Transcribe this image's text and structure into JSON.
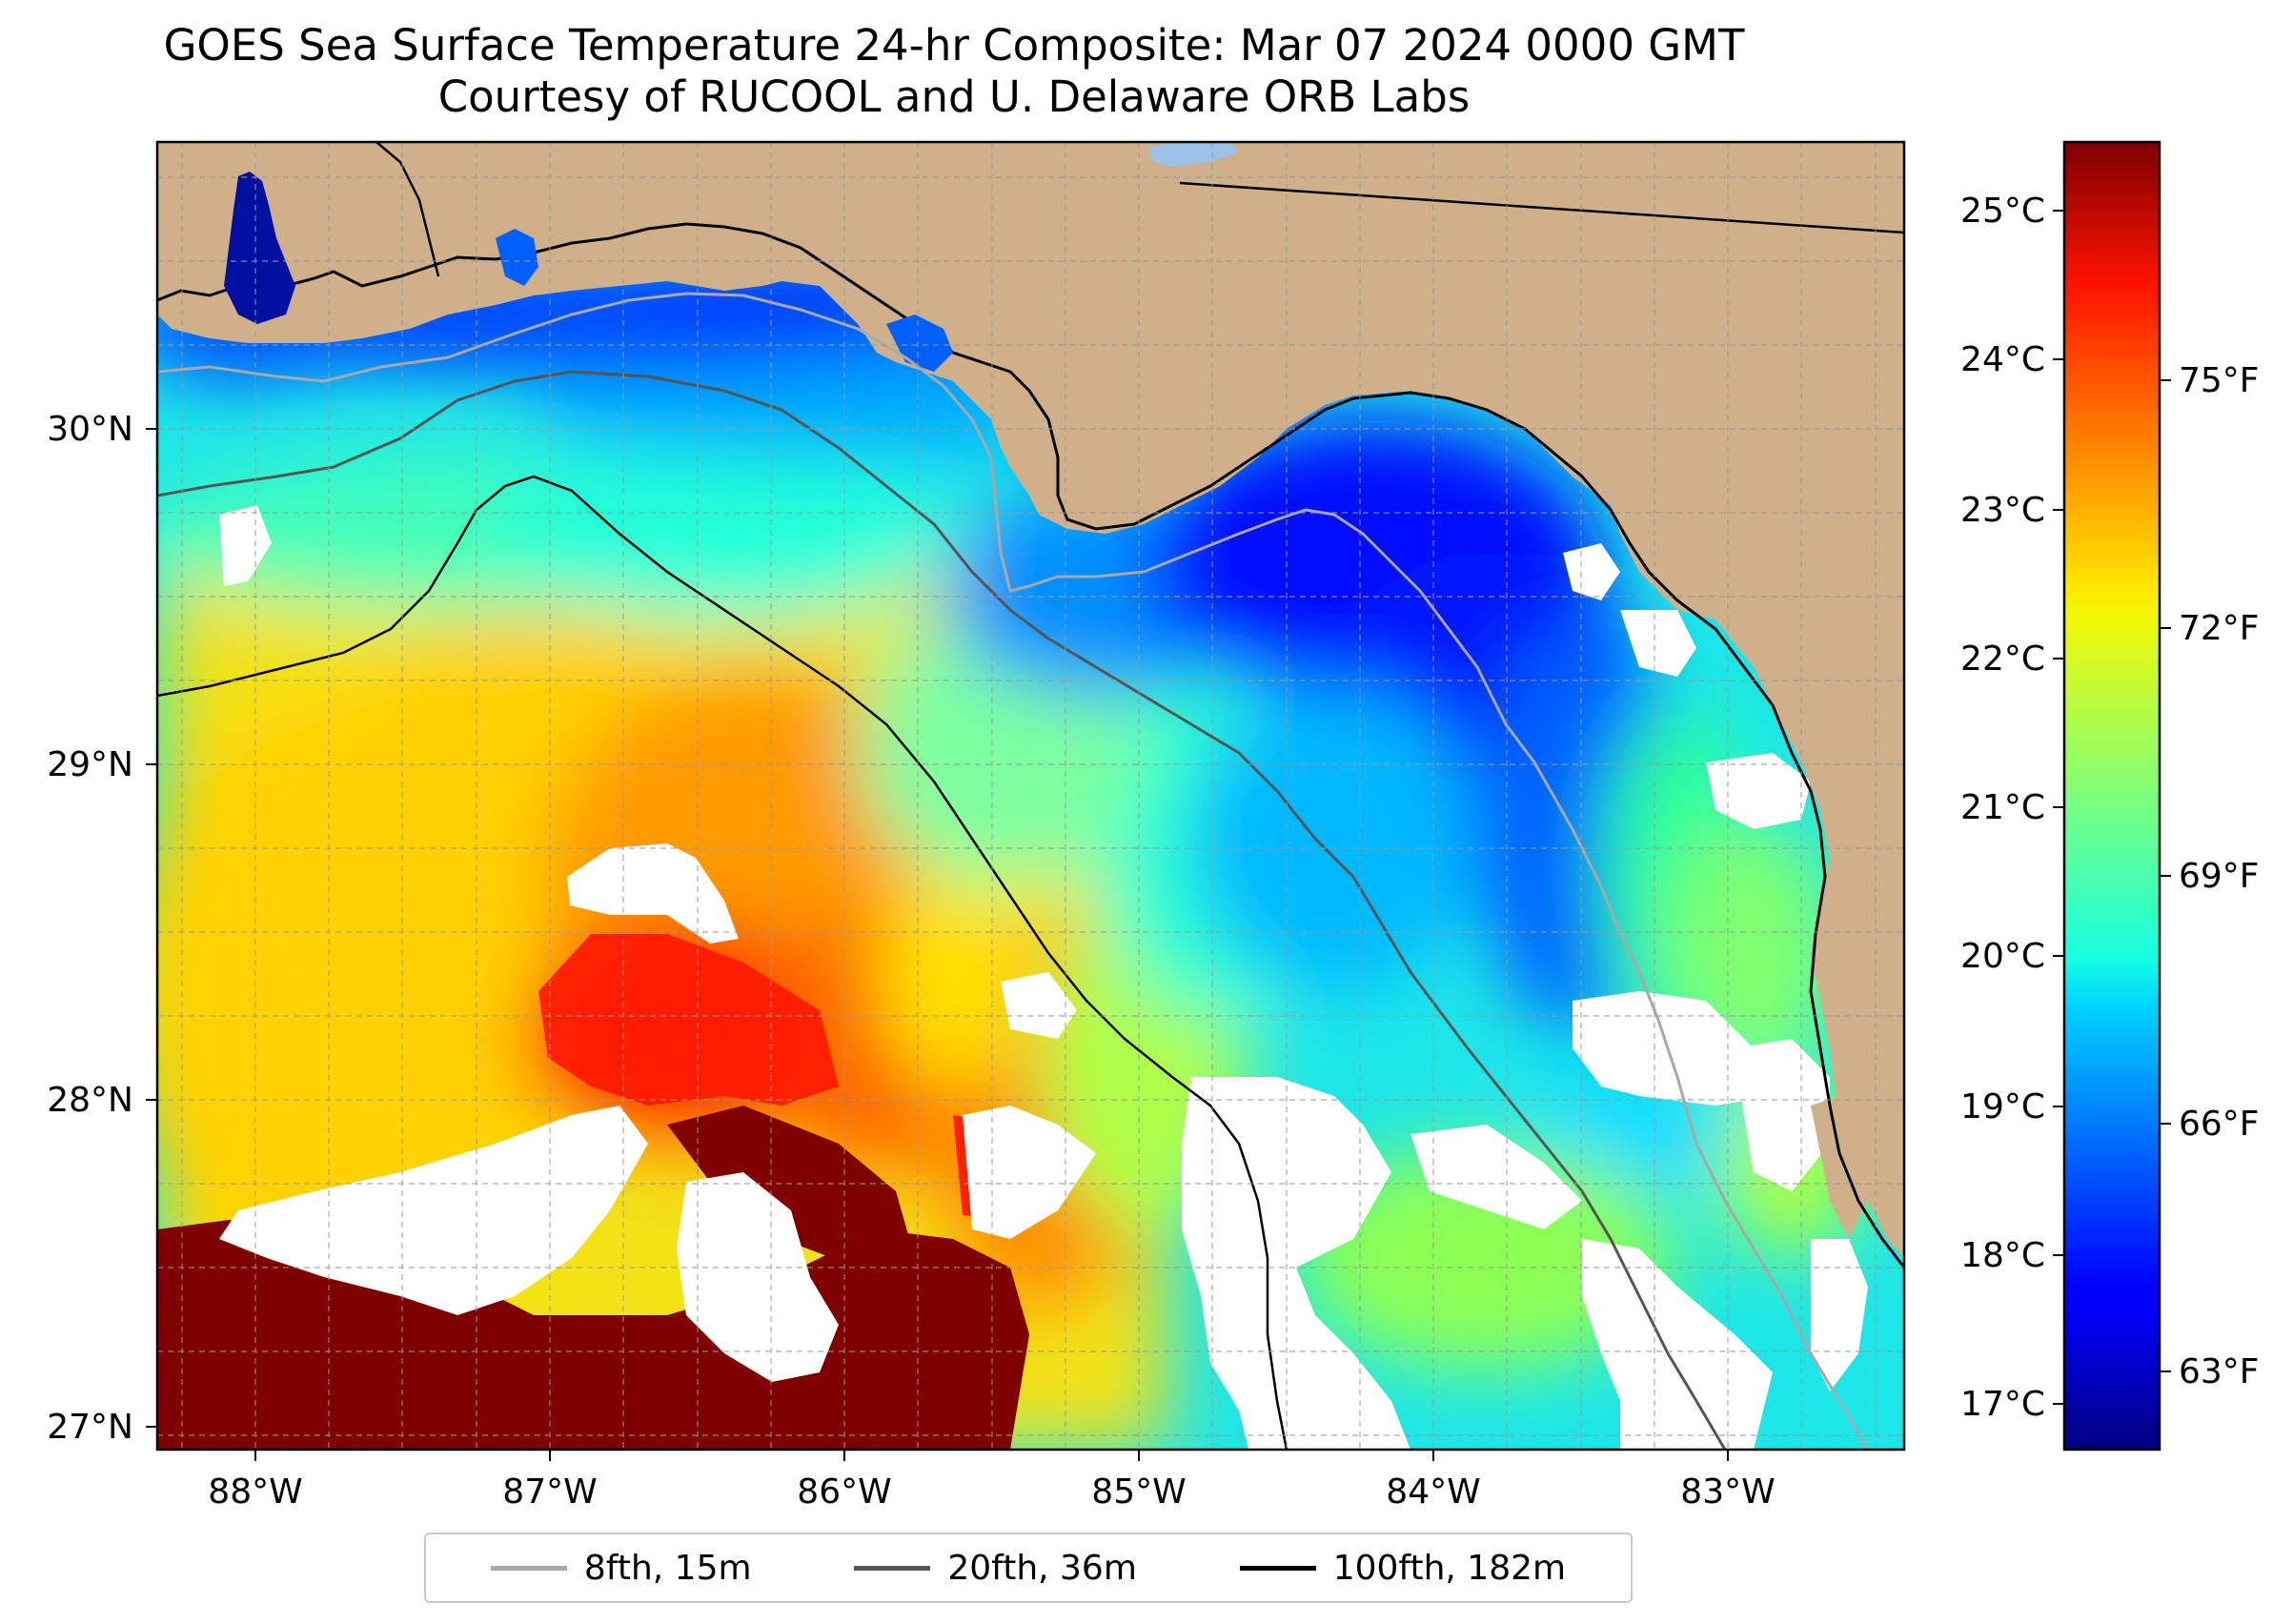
{
  "title_line1": "GOES Sea Surface Temperature 24-hr Composite: Mar 07 2024 0000 GMT",
  "title_line2": "Courtesy of RUCOOL and U. Delaware ORB Labs",
  "map": {
    "lon_range": [
      -88.33,
      -82.4
    ],
    "lat_range": [
      26.95,
      30.85
    ],
    "lon_ticks": [
      "88°W",
      "87°W",
      "86°W",
      "85°W",
      "84°W",
      "83°W"
    ],
    "lat_ticks": [
      "30°N",
      "29°N",
      "28°N",
      "27°N"
    ],
    "land_color": "#cfb08a",
    "no_data_color": "#ffffff",
    "gridlines": "dashed gray"
  },
  "colorbar": {
    "colormap": "jet",
    "celsius_ticks": [
      "25°C",
      "24°C",
      "23°C",
      "22°C",
      "21°C",
      "20°C",
      "19°C",
      "18°C",
      "17°C"
    ],
    "fahrenheit_ticks": [
      "75°F",
      "72°F",
      "69°F",
      "66°F",
      "63°F"
    ],
    "celsius_range": [
      16.7,
      25.5
    ]
  },
  "legend": [
    {
      "label": "8fth, 15m",
      "color": "#a8a8a8"
    },
    {
      "label": "20fth, 36m",
      "color": "#555555"
    },
    {
      "label": "100fth, 182m",
      "color": "#000000"
    }
  ]
}
